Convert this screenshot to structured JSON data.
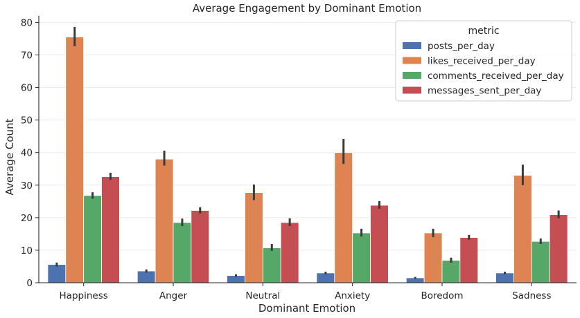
{
  "chart_data": {
    "type": "bar",
    "title": "Average Engagement by Dominant Emotion",
    "xlabel": "Dominant Emotion",
    "ylabel": "Average Count",
    "ylim": [
      0,
      82
    ],
    "yticks": [
      0,
      10,
      20,
      30,
      40,
      50,
      60,
      70,
      80
    ],
    "grid": true,
    "legend": {
      "title": "metric",
      "placement": "top-right"
    },
    "categories": [
      "Happiness",
      "Anger",
      "Neutral",
      "Anxiety",
      "Boredom",
      "Sadness"
    ],
    "series": [
      {
        "name": "posts_per_day",
        "color": "#4c72b0",
        "values": [
          5.6,
          3.6,
          2.2,
          3.0,
          1.5,
          3.0
        ],
        "err_low": [
          5.0,
          3.1,
          1.8,
          2.6,
          1.2,
          2.6
        ],
        "err_high": [
          6.2,
          4.1,
          2.6,
          3.4,
          1.8,
          3.4
        ]
      },
      {
        "name": "likes_received_per_day",
        "color": "#dd8452",
        "values": [
          75.5,
          38.0,
          27.7,
          40.0,
          15.3,
          33.0
        ],
        "err_low": [
          72.7,
          36.0,
          25.4,
          36.5,
          14.0,
          30.0
        ],
        "err_high": [
          78.6,
          40.6,
          30.2,
          44.2,
          16.6,
          36.3
        ]
      },
      {
        "name": "comments_received_per_day",
        "color": "#55a868",
        "values": [
          26.8,
          18.5,
          10.7,
          15.3,
          6.9,
          12.7
        ],
        "err_low": [
          25.8,
          17.4,
          9.8,
          14.2,
          6.2,
          11.9
        ],
        "err_high": [
          27.8,
          19.7,
          11.9,
          16.6,
          7.7,
          13.6
        ]
      },
      {
        "name": "messages_sent_per_day",
        "color": "#c44e52",
        "values": [
          32.6,
          22.2,
          18.5,
          23.8,
          13.9,
          20.9
        ],
        "err_low": [
          31.6,
          21.3,
          17.4,
          22.7,
          13.2,
          19.8
        ],
        "err_high": [
          33.8,
          23.2,
          19.8,
          25.1,
          14.7,
          22.2
        ]
      }
    ]
  }
}
